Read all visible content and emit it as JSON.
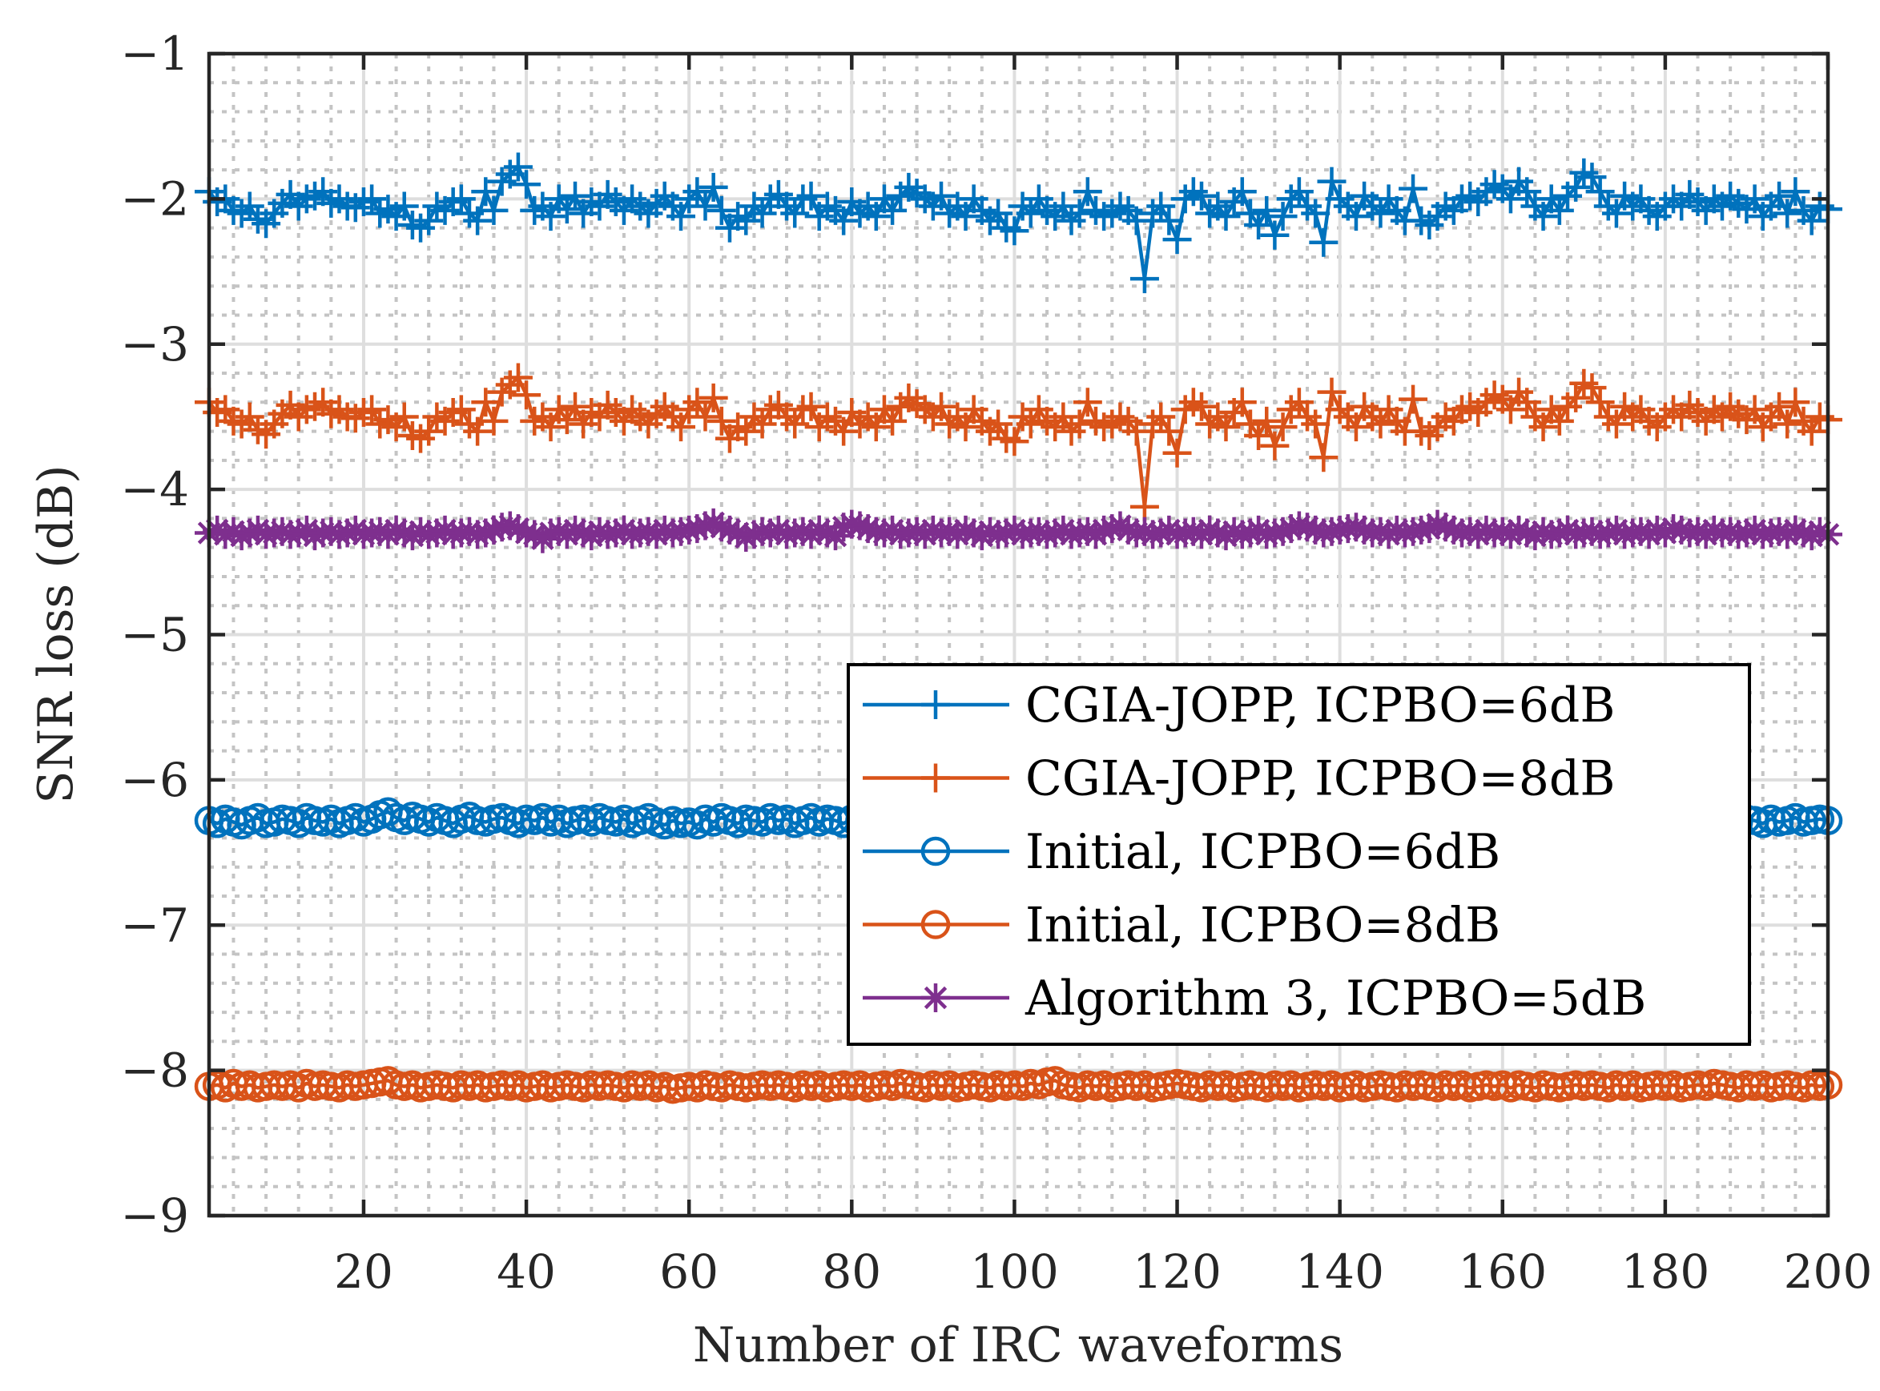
{
  "chart_data": {
    "type": "line",
    "title": "",
    "xlabel": "Number of IRC waveforms",
    "ylabel": "SNR loss (dB)",
    "xlim": [
      1,
      200
    ],
    "ylim": [
      -9,
      -1
    ],
    "xticks": [
      20,
      40,
      60,
      80,
      100,
      120,
      140,
      160,
      180,
      200
    ],
    "xticklabels": [
      "20",
      "40",
      "60",
      "80",
      "100",
      "120",
      "140",
      "160",
      "180",
      "200"
    ],
    "yticks": [
      -1,
      -2,
      -3,
      -4,
      -5,
      -6,
      -7,
      -8,
      -9
    ],
    "yticklabels": [
      "−1",
      "−2",
      "−3",
      "−4",
      "−5",
      "−6",
      "−7",
      "−8",
      "−9"
    ],
    "grid": true,
    "minor_grid": true,
    "legend_position": "center-right",
    "series": [
      {
        "name": "CGIA-JOPP, ICPBO=6dB",
        "color": "#0072BD",
        "marker": "plus",
        "values": [
          -1.95,
          -2.02,
          -2.0,
          -2.08,
          -2.1,
          -2.05,
          -2.14,
          -2.17,
          -2.1,
          -2.03,
          -1.97,
          -2.05,
          -2.0,
          -1.98,
          -1.95,
          -2.03,
          -2.0,
          -2.05,
          -2.06,
          -2.02,
          -2.0,
          -2.1,
          -2.07,
          -2.12,
          -2.05,
          -2.18,
          -2.2,
          -2.15,
          -2.05,
          -2.08,
          -2.02,
          -2.0,
          -2.1,
          -2.15,
          -1.95,
          -2.08,
          -1.88,
          -1.83,
          -1.78,
          -1.9,
          -2.08,
          -2.05,
          -2.12,
          -2.0,
          -2.07,
          -1.98,
          -2.1,
          -2.02,
          -2.05,
          -1.97,
          -2.02,
          -2.08,
          -2.0,
          -2.05,
          -2.1,
          -2.03,
          -1.98,
          -2.05,
          -2.12,
          -2.0,
          -1.95,
          -2.05,
          -1.92,
          -2.08,
          -2.2,
          -2.12,
          -2.15,
          -2.05,
          -2.1,
          -2.0,
          -1.97,
          -2.05,
          -2.1,
          -2.0,
          -1.98,
          -2.12,
          -2.05,
          -2.08,
          -2.15,
          -2.02,
          -2.1,
          -2.05,
          -2.12,
          -2.0,
          -2.08,
          -1.98,
          -1.92,
          -1.96,
          -2.0,
          -2.05,
          -1.98,
          -2.1,
          -2.05,
          -2.12,
          -2.0,
          -2.08,
          -2.15,
          -2.1,
          -2.2,
          -2.22,
          -2.05,
          -2.1,
          -2.0,
          -2.08,
          -2.12,
          -2.05,
          -2.15,
          -2.1,
          -1.95,
          -2.08,
          -2.12,
          -2.1,
          -2.05,
          -2.08,
          -2.15,
          -2.55,
          -2.1,
          -2.05,
          -2.15,
          -2.28,
          -2.0,
          -1.95,
          -1.98,
          -2.1,
          -2.05,
          -2.12,
          -2.02,
          -1.95,
          -2.1,
          -2.18,
          -2.08,
          -2.25,
          -2.12,
          -2.0,
          -1.95,
          -2.05,
          -2.1,
          -2.3,
          -1.88,
          -2.0,
          -2.05,
          -2.12,
          -1.98,
          -2.05,
          -2.1,
          -2.0,
          -2.08,
          -2.15,
          -1.93,
          -2.15,
          -2.18,
          -2.12,
          -2.05,
          -2.08,
          -2.0,
          -1.98,
          -2.02,
          -1.95,
          -1.9,
          -1.93,
          -2.0,
          -1.88,
          -1.95,
          -2.05,
          -2.12,
          -2.0,
          -2.08,
          -1.98,
          -1.92,
          -1.82,
          -1.85,
          -1.95,
          -2.05,
          -2.1,
          -1.98,
          -2.05,
          -2.0,
          -2.08,
          -2.12,
          -2.05,
          -2.0,
          -2.05,
          -1.97,
          -2.02,
          -2.08,
          -2.0,
          -2.05,
          -1.98,
          -2.03,
          -2.07,
          -2.0,
          -2.12,
          -2.05,
          -1.98,
          -2.1,
          -1.95,
          -2.08,
          -2.15,
          -2.05,
          -2.07
        ]
      },
      {
        "name": "CGIA-JOPP, ICPBO=8dB",
        "color": "#D95319",
        "marker": "plus",
        "values": [
          -3.4,
          -3.47,
          -3.45,
          -3.53,
          -3.55,
          -3.5,
          -3.59,
          -3.62,
          -3.55,
          -3.48,
          -3.42,
          -3.5,
          -3.45,
          -3.43,
          -3.4,
          -3.48,
          -3.45,
          -3.5,
          -3.51,
          -3.47,
          -3.45,
          -3.55,
          -3.52,
          -3.57,
          -3.5,
          -3.63,
          -3.65,
          -3.6,
          -3.5,
          -3.53,
          -3.47,
          -3.45,
          -3.55,
          -3.6,
          -3.4,
          -3.53,
          -3.33,
          -3.28,
          -3.23,
          -3.35,
          -3.53,
          -3.5,
          -3.57,
          -3.45,
          -3.52,
          -3.43,
          -3.55,
          -3.47,
          -3.5,
          -3.42,
          -3.47,
          -3.53,
          -3.45,
          -3.5,
          -3.55,
          -3.48,
          -3.43,
          -3.5,
          -3.57,
          -3.45,
          -3.4,
          -3.5,
          -3.37,
          -3.53,
          -3.65,
          -3.57,
          -3.6,
          -3.5,
          -3.55,
          -3.45,
          -3.42,
          -3.5,
          -3.55,
          -3.45,
          -3.43,
          -3.57,
          -3.5,
          -3.53,
          -3.6,
          -3.47,
          -3.55,
          -3.5,
          -3.57,
          -3.45,
          -3.53,
          -3.43,
          -3.37,
          -3.41,
          -3.45,
          -3.5,
          -3.43,
          -3.55,
          -3.5,
          -3.57,
          -3.45,
          -3.53,
          -3.6,
          -3.55,
          -3.65,
          -3.67,
          -3.5,
          -3.55,
          -3.45,
          -3.53,
          -3.57,
          -3.5,
          -3.6,
          -3.55,
          -3.4,
          -3.53,
          -3.57,
          -3.55,
          -3.5,
          -3.53,
          -3.6,
          -4.12,
          -3.55,
          -3.5,
          -3.6,
          -3.75,
          -3.45,
          -3.4,
          -3.43,
          -3.55,
          -3.5,
          -3.57,
          -3.47,
          -3.4,
          -3.55,
          -3.63,
          -3.53,
          -3.7,
          -3.57,
          -3.45,
          -3.4,
          -3.5,
          -3.55,
          -3.78,
          -3.33,
          -3.45,
          -3.5,
          -3.57,
          -3.43,
          -3.5,
          -3.55,
          -3.45,
          -3.53,
          -3.6,
          -3.38,
          -3.6,
          -3.63,
          -3.57,
          -3.5,
          -3.53,
          -3.45,
          -3.43,
          -3.47,
          -3.4,
          -3.35,
          -3.38,
          -3.45,
          -3.33,
          -3.4,
          -3.5,
          -3.57,
          -3.45,
          -3.53,
          -3.43,
          -3.37,
          -3.27,
          -3.3,
          -3.4,
          -3.5,
          -3.55,
          -3.43,
          -3.5,
          -3.45,
          -3.53,
          -3.57,
          -3.5,
          -3.45,
          -3.5,
          -3.42,
          -3.47,
          -3.53,
          -3.45,
          -3.5,
          -3.43,
          -3.48,
          -3.52,
          -3.45,
          -3.57,
          -3.5,
          -3.43,
          -3.55,
          -3.4,
          -3.53,
          -3.6,
          -3.5,
          -3.52
        ]
      },
      {
        "name": "Initial, ICPBO=6dB",
        "color": "#0072BD",
        "marker": "circle",
        "values": [
          -6.28,
          -6.3,
          -6.27,
          -6.29,
          -6.31,
          -6.28,
          -6.26,
          -6.3,
          -6.29,
          -6.27,
          -6.28,
          -6.3,
          -6.26,
          -6.28,
          -6.29,
          -6.27,
          -6.3,
          -6.28,
          -6.26,
          -6.29,
          -6.27,
          -6.24,
          -6.22,
          -6.26,
          -6.28,
          -6.25,
          -6.27,
          -6.29,
          -6.26,
          -6.28,
          -6.3,
          -6.27,
          -6.25,
          -6.28,
          -6.29,
          -6.27,
          -6.26,
          -6.28,
          -6.3,
          -6.27,
          -6.28,
          -6.26,
          -6.29,
          -6.27,
          -6.3,
          -6.28,
          -6.27,
          -6.29,
          -6.26,
          -6.28,
          -6.29,
          -6.27,
          -6.3,
          -6.28,
          -6.26,
          -6.29,
          -6.31,
          -6.28,
          -6.3,
          -6.29,
          -6.31,
          -6.27,
          -6.29,
          -6.26,
          -6.28,
          -6.3,
          -6.27,
          -6.28,
          -6.29,
          -6.26,
          -6.28,
          -6.27,
          -6.3,
          -6.28,
          -6.26,
          -6.29,
          -6.27,
          -6.28,
          -6.3,
          -6.27,
          -6.28,
          -6.26,
          -6.29,
          -6.27,
          -6.28,
          -6.3,
          -6.27,
          -6.26,
          -6.29,
          -6.28,
          -6.27,
          -6.29,
          -6.28,
          -6.26,
          -6.3,
          -6.28,
          -6.27,
          -6.29,
          -6.28,
          -6.27,
          -6.28,
          -6.3,
          -6.27,
          -6.29,
          -6.26,
          -6.28,
          -6.27,
          -6.29,
          -6.28,
          -6.3,
          -6.27,
          -6.28,
          -6.26,
          -6.29,
          -6.28,
          -6.27,
          -6.3,
          -6.28,
          -6.26,
          -6.29,
          -6.28,
          -6.27,
          -6.29,
          -6.28,
          -6.26,
          -6.3,
          -6.28,
          -6.27,
          -6.29,
          -6.28,
          -6.26,
          -6.28,
          -6.29,
          -6.27,
          -6.28,
          -6.3,
          -6.27,
          -6.26,
          -6.28,
          -6.29,
          -6.27,
          -6.28,
          -6.3,
          -6.28,
          -6.26,
          -6.29,
          -6.27,
          -6.28,
          -6.29,
          -6.27,
          -6.28,
          -6.3,
          -6.27,
          -6.28,
          -6.26,
          -6.29,
          -6.28,
          -6.27,
          -6.3,
          -6.28,
          -6.27,
          -6.29,
          -6.28,
          -6.26,
          -6.28,
          -6.3,
          -6.27,
          -6.29,
          -6.28,
          -6.27,
          -6.28,
          -6.26,
          -6.29,
          -6.27,
          -6.28,
          -6.3,
          -6.28,
          -6.27,
          -6.29,
          -6.28,
          -6.27,
          -6.28,
          -6.3,
          -6.27,
          -6.29,
          -6.28,
          -6.26,
          -6.28,
          -6.29,
          -6.27,
          -6.28,
          -6.3,
          -6.27,
          -6.29,
          -6.28,
          -6.26,
          -6.29,
          -6.28,
          -6.27,
          -6.28
        ]
      },
      {
        "name": "Initial, ICPBO=8dB",
        "color": "#D95319",
        "marker": "circle",
        "values": [
          -8.11,
          -8.1,
          -8.12,
          -8.09,
          -8.11,
          -8.1,
          -8.12,
          -8.11,
          -8.1,
          -8.11,
          -8.1,
          -8.12,
          -8.09,
          -8.11,
          -8.1,
          -8.11,
          -8.12,
          -8.1,
          -8.11,
          -8.1,
          -8.09,
          -8.08,
          -8.07,
          -8.1,
          -8.11,
          -8.1,
          -8.12,
          -8.11,
          -8.1,
          -8.11,
          -8.12,
          -8.1,
          -8.11,
          -8.1,
          -8.12,
          -8.11,
          -8.1,
          -8.11,
          -8.1,
          -8.12,
          -8.11,
          -8.1,
          -8.12,
          -8.11,
          -8.1,
          -8.11,
          -8.12,
          -8.1,
          -8.11,
          -8.1,
          -8.11,
          -8.12,
          -8.1,
          -8.11,
          -8.1,
          -8.12,
          -8.11,
          -8.13,
          -8.12,
          -8.11,
          -8.12,
          -8.1,
          -8.11,
          -8.12,
          -8.1,
          -8.11,
          -8.12,
          -8.11,
          -8.1,
          -8.11,
          -8.1,
          -8.11,
          -8.12,
          -8.1,
          -8.11,
          -8.1,
          -8.12,
          -8.11,
          -8.1,
          -8.11,
          -8.1,
          -8.12,
          -8.11,
          -8.1,
          -8.11,
          -8.09,
          -8.1,
          -8.11,
          -8.12,
          -8.1,
          -8.11,
          -8.1,
          -8.12,
          -8.11,
          -8.1,
          -8.11,
          -8.12,
          -8.1,
          -8.11,
          -8.1,
          -8.11,
          -8.09,
          -8.1,
          -8.08,
          -8.07,
          -8.1,
          -8.11,
          -8.12,
          -8.1,
          -8.11,
          -8.1,
          -8.12,
          -8.11,
          -8.1,
          -8.11,
          -8.1,
          -8.12,
          -8.11,
          -8.1,
          -8.09,
          -8.1,
          -8.11,
          -8.12,
          -8.1,
          -8.11,
          -8.1,
          -8.12,
          -8.11,
          -8.1,
          -8.11,
          -8.12,
          -8.1,
          -8.11,
          -8.1,
          -8.12,
          -8.11,
          -8.1,
          -8.11,
          -8.1,
          -8.12,
          -8.11,
          -8.1,
          -8.12,
          -8.11,
          -8.1,
          -8.11,
          -8.12,
          -8.1,
          -8.11,
          -8.1,
          -8.11,
          -8.12,
          -8.1,
          -8.11,
          -8.1,
          -8.12,
          -8.11,
          -8.1,
          -8.11,
          -8.1,
          -8.12,
          -8.1,
          -8.11,
          -8.12,
          -8.1,
          -8.11,
          -8.12,
          -8.11,
          -8.1,
          -8.11,
          -8.1,
          -8.11,
          -8.12,
          -8.1,
          -8.11,
          -8.1,
          -8.12,
          -8.11,
          -8.1,
          -8.11,
          -8.1,
          -8.12,
          -8.11,
          -8.1,
          -8.11,
          -8.09,
          -8.1,
          -8.11,
          -8.12,
          -8.1,
          -8.11,
          -8.1,
          -8.12,
          -8.11,
          -8.1,
          -8.11,
          -8.12,
          -8.1,
          -8.11,
          -8.1
        ]
      },
      {
        "name": "Algorithm 3, ICPBO=5dB",
        "color": "#7E2F8E",
        "marker": "asterisk",
        "values": [
          -4.3,
          -4.28,
          -4.31,
          -4.29,
          -4.32,
          -4.3,
          -4.28,
          -4.31,
          -4.3,
          -4.29,
          -4.31,
          -4.3,
          -4.28,
          -4.32,
          -4.3,
          -4.29,
          -4.31,
          -4.3,
          -4.28,
          -4.31,
          -4.3,
          -4.29,
          -4.31,
          -4.28,
          -4.3,
          -4.32,
          -4.29,
          -4.31,
          -4.3,
          -4.28,
          -4.31,
          -4.3,
          -4.29,
          -4.31,
          -4.3,
          -4.28,
          -4.26,
          -4.25,
          -4.27,
          -4.3,
          -4.31,
          -4.34,
          -4.3,
          -4.29,
          -4.31,
          -4.28,
          -4.3,
          -4.32,
          -4.29,
          -4.31,
          -4.3,
          -4.28,
          -4.31,
          -4.3,
          -4.29,
          -4.31,
          -4.28,
          -4.3,
          -4.29,
          -4.28,
          -4.27,
          -4.25,
          -4.23,
          -4.26,
          -4.28,
          -4.3,
          -4.33,
          -4.31,
          -4.29,
          -4.3,
          -4.28,
          -4.31,
          -4.3,
          -4.29,
          -4.31,
          -4.28,
          -4.3,
          -4.32,
          -4.26,
          -4.24,
          -4.25,
          -4.27,
          -4.29,
          -4.3,
          -4.28,
          -4.31,
          -4.3,
          -4.29,
          -4.31,
          -4.28,
          -4.3,
          -4.29,
          -4.31,
          -4.28,
          -4.3,
          -4.32,
          -4.29,
          -4.31,
          -4.3,
          -4.28,
          -4.31,
          -4.3,
          -4.29,
          -4.31,
          -4.3,
          -4.28,
          -4.31,
          -4.3,
          -4.29,
          -4.31,
          -4.28,
          -4.27,
          -4.25,
          -4.28,
          -4.3,
          -4.29,
          -4.31,
          -4.3,
          -4.28,
          -4.31,
          -4.3,
          -4.29,
          -4.31,
          -4.28,
          -4.3,
          -4.32,
          -4.29,
          -4.31,
          -4.3,
          -4.28,
          -4.31,
          -4.3,
          -4.29,
          -4.27,
          -4.25,
          -4.26,
          -4.28,
          -4.3,
          -4.29,
          -4.28,
          -4.27,
          -4.26,
          -4.28,
          -4.3,
          -4.29,
          -4.31,
          -4.28,
          -4.3,
          -4.29,
          -4.28,
          -4.27,
          -4.24,
          -4.26,
          -4.28,
          -4.3,
          -4.29,
          -4.31,
          -4.28,
          -4.3,
          -4.29,
          -4.31,
          -4.28,
          -4.3,
          -4.32,
          -4.29,
          -4.31,
          -4.3,
          -4.28,
          -4.31,
          -4.3,
          -4.29,
          -4.31,
          -4.3,
          -4.28,
          -4.31,
          -4.3,
          -4.29,
          -4.31,
          -4.28,
          -4.3,
          -4.27,
          -4.28,
          -4.3,
          -4.29,
          -4.31,
          -4.28,
          -4.3,
          -4.29,
          -4.31,
          -4.3,
          -4.28,
          -4.31,
          -4.3,
          -4.29,
          -4.31,
          -4.28,
          -4.3,
          -4.32,
          -4.29,
          -4.31
        ]
      }
    ]
  }
}
